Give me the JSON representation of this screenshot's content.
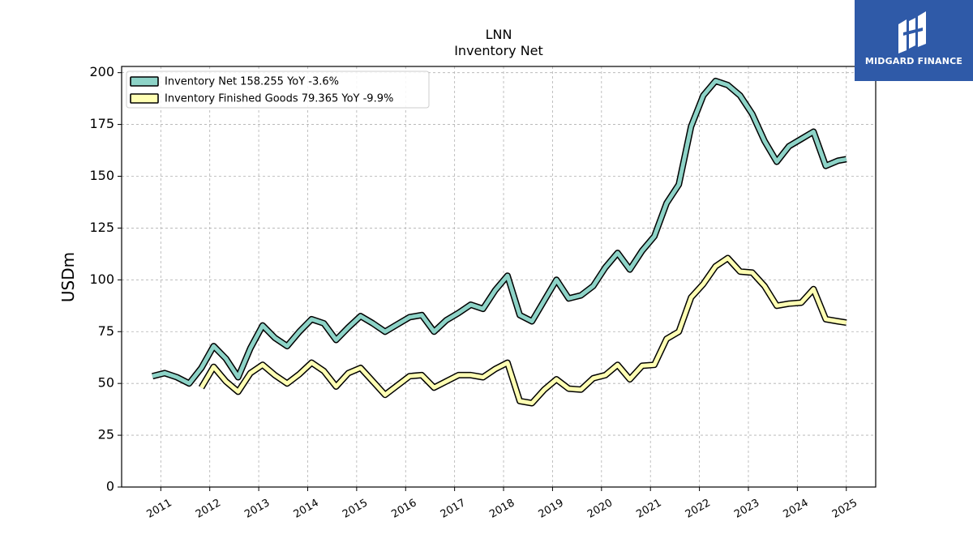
{
  "brand": {
    "name": "MIDGARD FINANCE",
    "background": "#2f5aa8"
  },
  "chart_data": {
    "type": "line",
    "title": "LNN",
    "subtitle": "Inventory Net",
    "ylabel": "USDm",
    "xlabel": "",
    "ylim": [
      0,
      203
    ],
    "xlim": [
      2010.2,
      2025.6
    ],
    "yticks": [
      0,
      25,
      50,
      75,
      100,
      125,
      150,
      175,
      200
    ],
    "xticks": [
      "2011",
      "2012",
      "2013",
      "2014",
      "2015",
      "2016",
      "2017",
      "2018",
      "2019",
      "2020",
      "2021",
      "2022",
      "2023",
      "2024",
      "2025"
    ],
    "grid": true,
    "legend_position": "top-left",
    "series": [
      {
        "name": "Inventory Net  158.255 YoY -3.6%",
        "color": "#8dd3c7",
        "x": [
          2010.83,
          2011.08,
          2011.33,
          2011.58,
          2011.83,
          2012.08,
          2012.33,
          2012.58,
          2012.83,
          2013.08,
          2013.33,
          2013.58,
          2013.83,
          2014.08,
          2014.33,
          2014.58,
          2014.83,
          2015.08,
          2015.33,
          2015.58,
          2015.83,
          2016.08,
          2016.33,
          2016.58,
          2016.83,
          2017.08,
          2017.33,
          2017.58,
          2017.83,
          2018.08,
          2018.33,
          2018.58,
          2018.83,
          2019.08,
          2019.33,
          2019.58,
          2019.83,
          2020.08,
          2020.33,
          2020.58,
          2020.83,
          2021.08,
          2021.33,
          2021.58,
          2021.83,
          2022.08,
          2022.33,
          2022.58,
          2022.83,
          2023.08,
          2023.33,
          2023.58,
          2023.83,
          2024.08,
          2024.33,
          2024.58,
          2024.83,
          2025.0
        ],
        "values": [
          53.5,
          55,
          53,
          50,
          57.5,
          68,
          62,
          53,
          67,
          78,
          72,
          68,
          75,
          81,
          79,
          71,
          77,
          82.5,
          79,
          75,
          78.5,
          82,
          83,
          75,
          80.5,
          84,
          88,
          86,
          95,
          102,
          83,
          80,
          90,
          100,
          91,
          92.5,
          97,
          106,
          113,
          105,
          114,
          121,
          137,
          146,
          174,
          189,
          196,
          194,
          189,
          180,
          167,
          157,
          164.5,
          168,
          171.5,
          155,
          157.5,
          158.255
        ]
      },
      {
        "name": "Inventory Finished Goods  79.365 YoY -9.9%",
        "color": "#ffffb3",
        "x": [
          2011.83,
          2012.08,
          2012.33,
          2012.58,
          2012.83,
          2013.08,
          2013.33,
          2013.58,
          2013.83,
          2014.08,
          2014.33,
          2014.58,
          2014.83,
          2015.08,
          2015.33,
          2015.58,
          2015.83,
          2016.08,
          2016.33,
          2016.58,
          2016.83,
          2017.08,
          2017.33,
          2017.58,
          2017.83,
          2018.08,
          2018.33,
          2018.58,
          2018.83,
          2019.08,
          2019.33,
          2019.58,
          2019.83,
          2020.08,
          2020.33,
          2020.58,
          2020.83,
          2021.08,
          2021.33,
          2021.58,
          2021.83,
          2022.08,
          2022.33,
          2022.58,
          2022.83,
          2023.08,
          2023.33,
          2023.58,
          2023.83,
          2024.08,
          2024.33,
          2024.58,
          2024.83,
          2025.0
        ],
        "values": [
          48,
          58,
          51,
          46,
          55,
          59,
          54,
          50,
          54.5,
          60,
          56,
          48.5,
          55,
          57.5,
          51,
          44.5,
          49,
          53.5,
          54,
          48,
          51,
          54,
          54,
          53,
          57,
          60,
          41.5,
          40.5,
          47,
          52,
          47.5,
          47,
          52.5,
          54,
          59,
          52,
          58.5,
          59,
          71.5,
          75,
          91.5,
          98,
          106.5,
          110.5,
          104,
          103.5,
          97,
          87.5,
          88.5,
          89,
          95.5,
          81,
          80,
          79.365
        ]
      }
    ]
  }
}
